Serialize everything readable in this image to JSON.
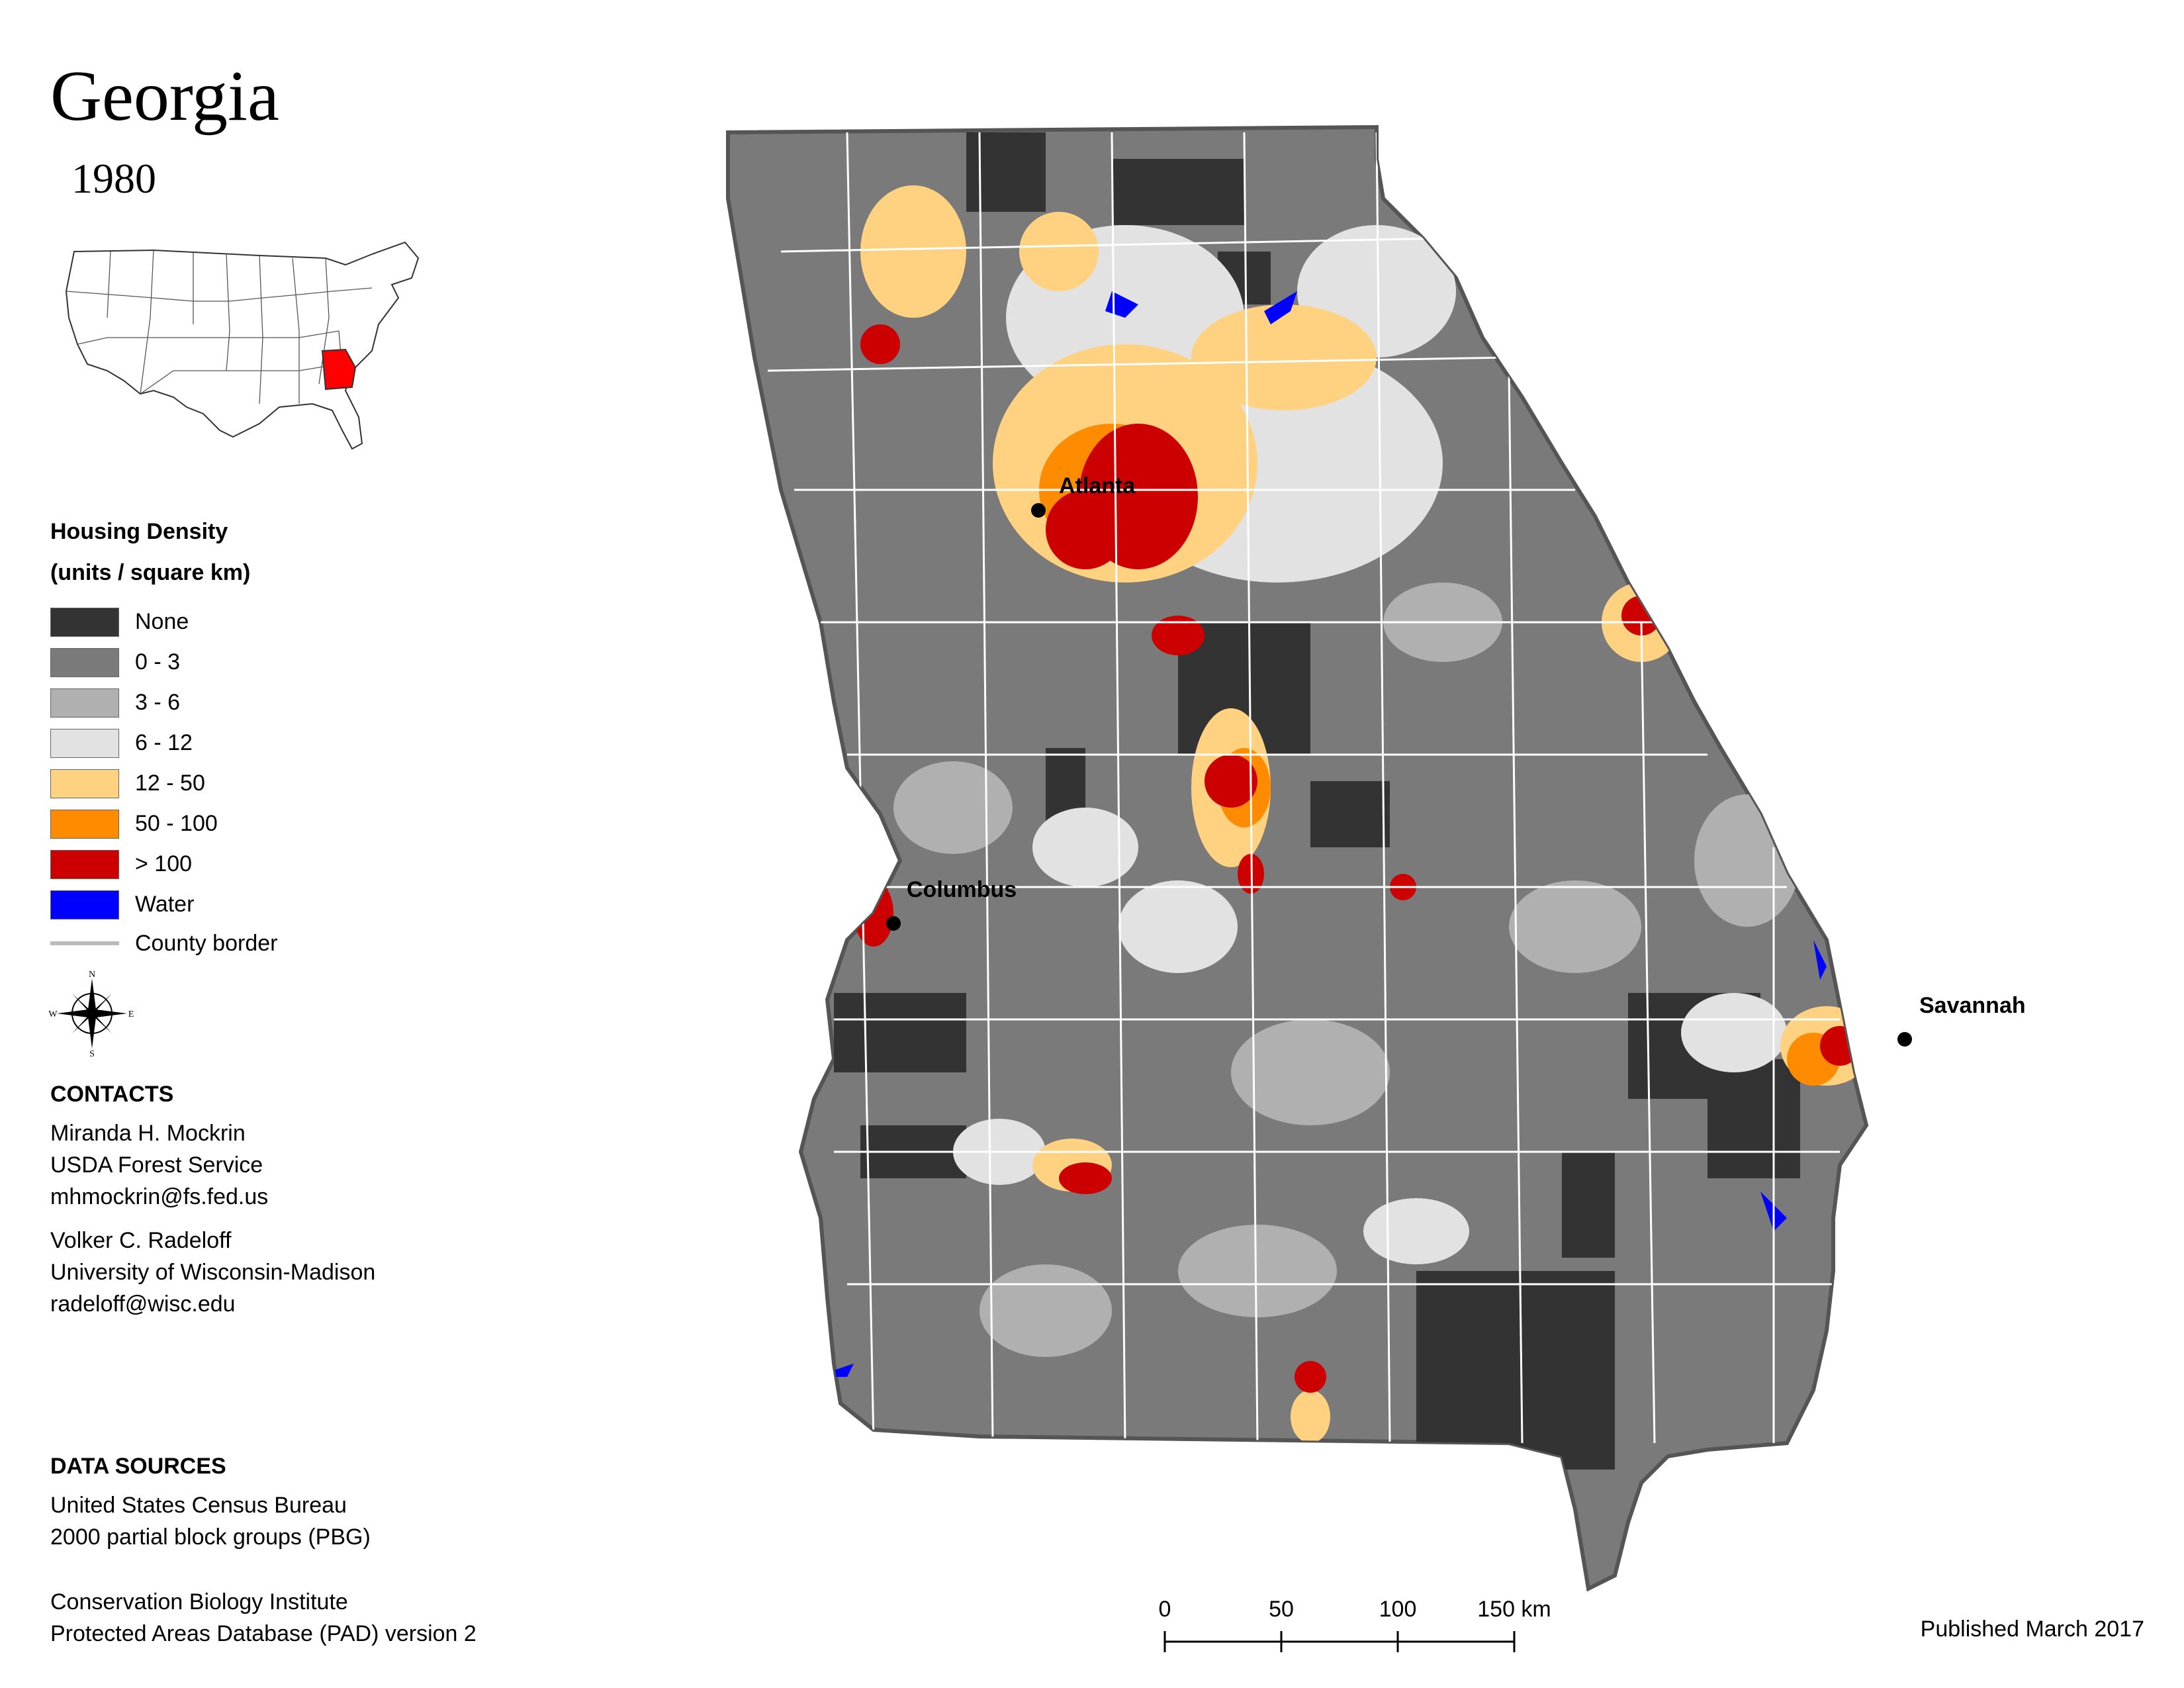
{
  "title": "Georgia",
  "year": "1980",
  "legend": {
    "title_line1": "Housing Density",
    "title_line2": "(units / square km)",
    "items": [
      {
        "label": "None",
        "color": "#333333"
      },
      {
        "label": "0 - 3",
        "color": "#7a7a7a"
      },
      {
        "label": "3 - 6",
        "color": "#b0b0b0"
      },
      {
        "label": "6 - 12",
        "color": "#e2e2e2"
      },
      {
        "label": "12 - 50",
        "color": "#ffd281"
      },
      {
        "label": "50 - 100",
        "color": "#ff8c00"
      },
      {
        "label": "> 100",
        "color": "#cc0000"
      },
      {
        "label": "Water",
        "color": "#0000ff"
      }
    ],
    "county_border_label": "County border"
  },
  "compass": {
    "n": "N",
    "s": "S",
    "e": "E",
    "w": "W"
  },
  "contacts": {
    "header": "CONTACTS",
    "person1": {
      "name": "Miranda H. Mockrin",
      "org": "USDA Forest Service",
      "email": "mhmockrin@fs.fed.us"
    },
    "person2": {
      "name": "Volker C. Radeloff",
      "org": "University of Wisconsin-Madison",
      "email": "radeloff@wisc.edu"
    }
  },
  "data_sources": {
    "header": "DATA SOURCES",
    "source1": {
      "line1": "United States Census Bureau",
      "line2": "2000 partial block groups (PBG)"
    },
    "source2": {
      "line1": "Conservation Biology Institute",
      "line2": "Protected Areas Database (PAD) version 2"
    }
  },
  "cities": {
    "atlanta": "Atlanta",
    "columbus": "Columbus",
    "savannah": "Savannah"
  },
  "scale": {
    "labels": [
      "0",
      "50",
      "100",
      "150 km"
    ]
  },
  "published": "Published March 2017",
  "highlight_color": "#ff0000"
}
